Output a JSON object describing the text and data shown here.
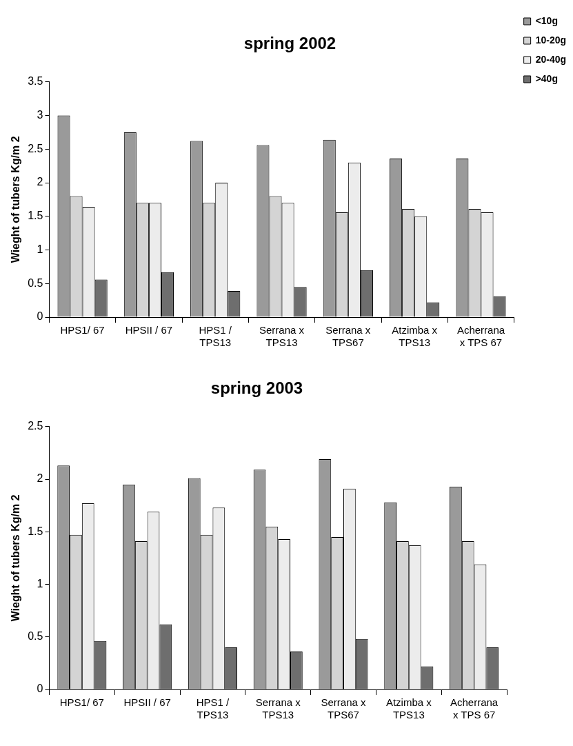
{
  "chart_data": [
    {
      "type": "bar",
      "title": "spring 2002",
      "ylabel": "Wieght of tubers Kg/m 2",
      "categories": [
        "HPS1/ 67",
        "HPSII / 67",
        "HPS1 / TPS13",
        "Serrana x TPS13",
        "Serrana x TPS67",
        "Atzimba x TPS13",
        "Acherrana x TPS 67"
      ],
      "series": [
        {
          "name": "<10g",
          "color": "#9a9a9a",
          "values": [
            3.0,
            2.75,
            2.62,
            2.56,
            2.64,
            2.36,
            2.36
          ]
        },
        {
          "name": "10-20g",
          "color": "#d4d4d4",
          "values": [
            1.8,
            1.7,
            1.7,
            1.8,
            1.56,
            1.61,
            1.61
          ]
        },
        {
          "name": "20-40g",
          "color": "#ececec",
          "values": [
            1.64,
            1.7,
            2.0,
            1.7,
            2.3,
            1.5,
            1.56
          ]
        },
        {
          "name": ">40g",
          "color": "#6e6e6e",
          "values": [
            0.56,
            0.67,
            0.39,
            0.45,
            0.7,
            0.22,
            0.31
          ]
        }
      ],
      "ylim": [
        0,
        3.5
      ],
      "yticks": [
        0,
        0.5,
        1,
        1.5,
        2,
        2.5,
        3,
        3.5
      ],
      "grid": false,
      "legend": "top right"
    },
    {
      "type": "bar",
      "title": "spring 2003",
      "ylabel": "Wieght of tubers Kg/m 2",
      "categories": [
        "HPS1/ 67",
        "HPSII / 67",
        "HPS1 / TPS13",
        "Serrana x TPS13",
        "Serrana x TPS67",
        "Atzimba x TPS13",
        "Acherrana x TPS 67"
      ],
      "series": [
        {
          "color": "#9a9a9a",
          "values": [
            2.13,
            1.95,
            2.01,
            2.09,
            2.19,
            1.78,
            1.93
          ]
        },
        {
          "color": "#d4d4d4",
          "values": [
            1.47,
            1.41,
            1.47,
            1.55,
            1.45,
            1.41,
            1.41
          ]
        },
        {
          "color": "#ececec",
          "values": [
            1.77,
            1.69,
            1.73,
            1.43,
            1.91,
            1.37,
            1.19
          ]
        },
        {
          "color": "#6e6e6e",
          "values": [
            0.46,
            0.62,
            0.4,
            0.36,
            0.48,
            0.22,
            0.4
          ]
        }
      ],
      "ylim": [
        0,
        2.5
      ],
      "yticks": [
        0,
        0.5,
        1,
        1.5,
        2,
        2.5
      ],
      "grid": false,
      "legend": false
    }
  ]
}
